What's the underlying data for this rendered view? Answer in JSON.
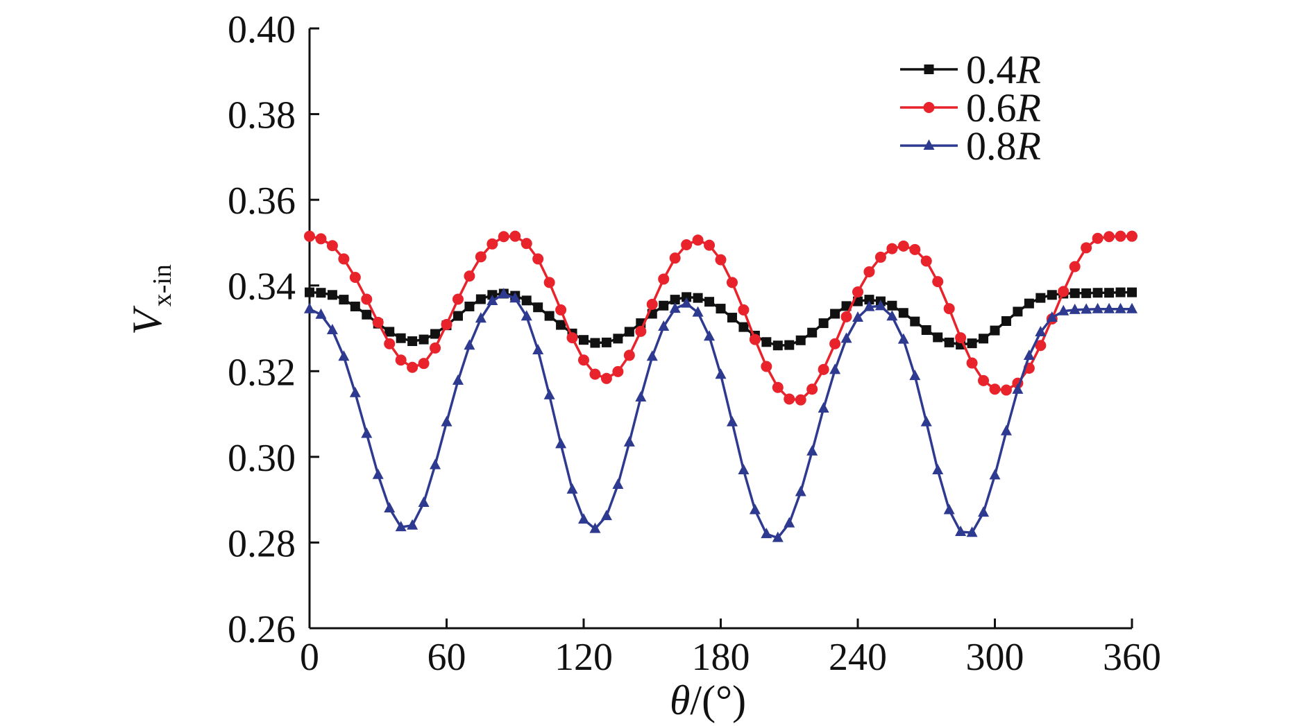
{
  "chart_data": {
    "type": "line",
    "title": "",
    "xlabel": {
      "italic": "θ",
      "rest": "/(°)"
    },
    "ylabel": {
      "main": "V",
      "subscript": "x-in"
    },
    "xlim": [
      0,
      360
    ],
    "ylim": [
      0.26,
      0.4
    ],
    "xticks": [
      0,
      60,
      120,
      180,
      240,
      300,
      360
    ],
    "xtick_labels": [
      "0",
      "60",
      "120",
      "180",
      "240",
      "300",
      "360"
    ],
    "yticks": [
      0.26,
      0.28,
      0.3,
      0.32,
      0.34,
      0.36,
      0.38,
      0.4
    ],
    "ytick_labels": [
      "0.26",
      "0.28",
      "0.30",
      "0.32",
      "0.34",
      "0.36",
      "0.38",
      "0.40"
    ],
    "grid": false,
    "legend_position": "top-right",
    "x": [
      0,
      5,
      10,
      15,
      20,
      25,
      30,
      35,
      40,
      45,
      50,
      55,
      60,
      65,
      70,
      75,
      80,
      85,
      90,
      95,
      100,
      105,
      110,
      115,
      120,
      125,
      130,
      135,
      140,
      145,
      150,
      155,
      160,
      165,
      170,
      175,
      180,
      185,
      190,
      195,
      200,
      205,
      210,
      215,
      220,
      225,
      230,
      235,
      240,
      245,
      250,
      255,
      260,
      265,
      270,
      275,
      280,
      285,
      290,
      295,
      300,
      305,
      310,
      315,
      320,
      325,
      330,
      335,
      340,
      345,
      350,
      355,
      360
    ],
    "series": [
      {
        "name": {
          "number": "0.4",
          "italic": "R"
        },
        "color": "#111111",
        "marker": "square",
        "values": [
          0.3384,
          0.3383,
          0.3378,
          0.3367,
          0.3351,
          0.3332,
          0.3311,
          0.3292,
          0.3277,
          0.327,
          0.3274,
          0.3287,
          0.3307,
          0.3329,
          0.3351,
          0.3368,
          0.3378,
          0.3381,
          0.3376,
          0.3365,
          0.3349,
          0.3329,
          0.3308,
          0.3288,
          0.3273,
          0.3266,
          0.3267,
          0.3276,
          0.3292,
          0.3312,
          0.3334,
          0.3353,
          0.3367,
          0.3373,
          0.3371,
          0.3362,
          0.3346,
          0.3325,
          0.3303,
          0.3283,
          0.3268,
          0.326,
          0.3261,
          0.3272,
          0.329,
          0.3312,
          0.3334,
          0.3352,
          0.3363,
          0.3367,
          0.3363,
          0.3353,
          0.3336,
          0.3316,
          0.3296,
          0.3279,
          0.3267,
          0.3262,
          0.3265,
          0.3276,
          0.3295,
          0.3317,
          0.3339,
          0.3358,
          0.3371,
          0.3378,
          0.3381,
          0.3382,
          0.3382,
          0.3383,
          0.3383,
          0.3384,
          0.3384
        ]
      },
      {
        "name": {
          "number": "0.6",
          "italic": "R"
        },
        "color": "#e8232b",
        "marker": "circle",
        "values": [
          0.3515,
          0.3509,
          0.3493,
          0.3462,
          0.3419,
          0.3368,
          0.3314,
          0.3264,
          0.3226,
          0.3209,
          0.3218,
          0.3254,
          0.3309,
          0.3368,
          0.3422,
          0.3467,
          0.3497,
          0.3514,
          0.3515,
          0.3498,
          0.3462,
          0.3407,
          0.3343,
          0.3278,
          0.3226,
          0.3193,
          0.3183,
          0.3199,
          0.3237,
          0.3293,
          0.3356,
          0.3415,
          0.3464,
          0.3495,
          0.3506,
          0.3494,
          0.346,
          0.3407,
          0.3343,
          0.3274,
          0.3211,
          0.3162,
          0.3135,
          0.3133,
          0.3158,
          0.3204,
          0.3264,
          0.3327,
          0.3385,
          0.3432,
          0.3466,
          0.3486,
          0.3492,
          0.3484,
          0.3457,
          0.3409,
          0.3346,
          0.3278,
          0.3219,
          0.3178,
          0.3158,
          0.3156,
          0.3172,
          0.3207,
          0.326,
          0.3322,
          0.3386,
          0.3444,
          0.3488,
          0.351,
          0.3514,
          0.3515,
          0.3515
        ]
      },
      {
        "name": {
          "number": "0.8",
          "italic": "R"
        },
        "color": "#2e3a8f",
        "marker": "triangle",
        "values": [
          0.3345,
          0.3332,
          0.3296,
          0.3234,
          0.3149,
          0.3054,
          0.2958,
          0.288,
          0.2836,
          0.284,
          0.2893,
          0.2981,
          0.3081,
          0.3178,
          0.326,
          0.3323,
          0.3364,
          0.338,
          0.337,
          0.3328,
          0.3249,
          0.3144,
          0.303,
          0.2924,
          0.2854,
          0.2832,
          0.2862,
          0.2935,
          0.3034,
          0.3139,
          0.3234,
          0.3304,
          0.3346,
          0.3358,
          0.3337,
          0.3281,
          0.3192,
          0.3081,
          0.2969,
          0.2876,
          0.282,
          0.2811,
          0.2845,
          0.2918,
          0.3013,
          0.3113,
          0.3203,
          0.3276,
          0.3325,
          0.335,
          0.3352,
          0.3328,
          0.3274,
          0.3189,
          0.3081,
          0.2969,
          0.2876,
          0.2825,
          0.2823,
          0.287,
          0.2957,
          0.306,
          0.3157,
          0.3236,
          0.3291,
          0.3325,
          0.334,
          0.3343,
          0.3344,
          0.3345,
          0.3345,
          0.3345,
          0.3345
        ]
      }
    ]
  }
}
